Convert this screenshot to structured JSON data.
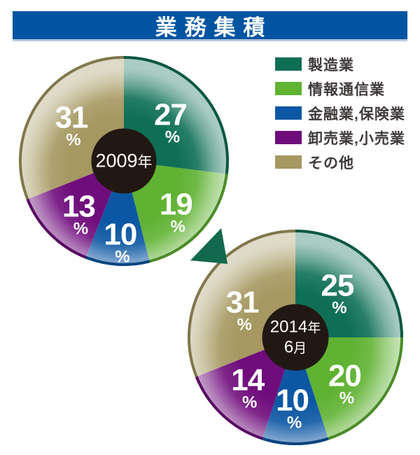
{
  "title": "業務集積",
  "colors": {
    "page_bg": "#ffffff",
    "title_bar_bg": "#0054a1",
    "title_bar_underline": "#b3c8e0",
    "title_text": "#ffffff",
    "legend_text": "#3e3a39",
    "center_circle_bg": "#221813",
    "center_circle_text": "#ffffff",
    "value_label_text": "#ffffff",
    "arrow": "#13694e"
  },
  "legend": {
    "items": [
      {
        "label": "製造業",
        "color": "#0e6f55"
      },
      {
        "label": "情報通信業",
        "color": "#60b233"
      },
      {
        "label": "金融業,保険業",
        "color": "#0c57a3"
      },
      {
        "label": "卸売業,小売業",
        "color": "#6f0d7c"
      },
      {
        "label": "その他",
        "color": "#a59861"
      }
    ]
  },
  "chart_data": [
    {
      "type": "pie",
      "center_label_lines": [
        "2009年"
      ],
      "categories": [
        "製造業",
        "情報通信業",
        "金融業,保険業",
        "卸売業,小売業",
        "その他"
      ],
      "values": [
        27,
        19,
        10,
        13,
        31
      ],
      "unit": "%",
      "colors": [
        "#0e6f55",
        "#60b233",
        "#0c57a3",
        "#6f0d7c",
        "#a59861"
      ],
      "start_angle_deg": 0,
      "clockwise": true,
      "label_angle_deg": [
        51,
        135,
        182.5,
        220,
        303.5
      ],
      "label_radius_fraction": [
        0.57,
        0.7,
        0.78,
        0.67,
        0.6
      ]
    },
    {
      "type": "pie",
      "center_label_lines": [
        "2014年",
        "6月"
      ],
      "categories": [
        "製造業",
        "情報通信業",
        "金融業,保険業",
        "卸売業,小売業",
        "その他"
      ],
      "values": [
        25,
        20,
        10,
        14,
        31
      ],
      "unit": "%",
      "colors": [
        "#0e6f55",
        "#60b233",
        "#0c57a3",
        "#6f0d7c",
        "#a59861"
      ],
      "start_angle_deg": 0,
      "clockwise": true,
      "label_angle_deg": [
        44,
        133.5,
        182.5,
        223,
        296.5
      ],
      "label_radius_fraction": [
        0.56,
        0.63,
        0.66,
        0.65,
        0.55
      ]
    }
  ]
}
